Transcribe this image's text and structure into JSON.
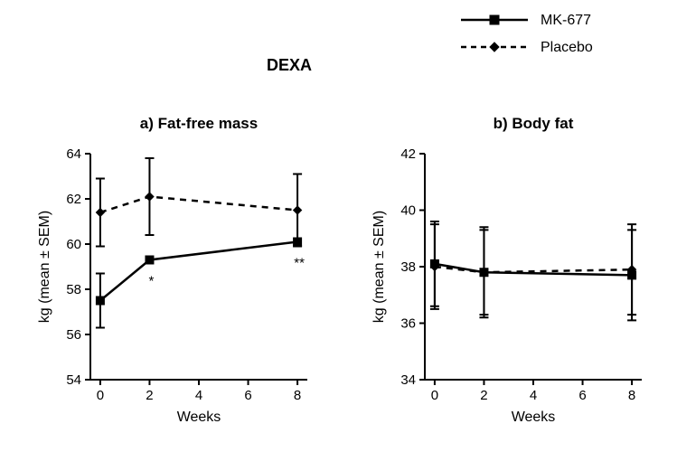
{
  "main_title": "DEXA",
  "main_title_fontsize": 18,
  "main_title_fontweight": "bold",
  "legend": {
    "items": [
      {
        "label": "MK-677",
        "marker": "square",
        "line_dash": "solid",
        "color": "#000000"
      },
      {
        "label": "Placebo",
        "marker": "diamond",
        "line_dash": "dashed",
        "color": "#000000"
      }
    ],
    "fontsize": 16
  },
  "panel_a": {
    "title": "a) Fat-free mass",
    "title_fontsize": 17,
    "title_fontweight": "bold",
    "type": "line_errorbar",
    "xlabel": "Weeks",
    "ylabel": "kg (mean ± SEM)",
    "label_fontsize": 16,
    "xlim": [
      -0.4,
      8.4
    ],
    "ylim": [
      54,
      64
    ],
    "xticks": [
      0,
      2,
      4,
      6,
      8
    ],
    "yticks": [
      54,
      56,
      58,
      60,
      62,
      64
    ],
    "tick_fontsize": 15,
    "background_color": "#ffffff",
    "grid": false,
    "line_width": 2.5,
    "marker_size": 9,
    "error_cap_width": 10,
    "series": [
      {
        "name": "mk677",
        "marker": "square",
        "line_dash": "solid",
        "color": "#000000",
        "points": [
          {
            "x": 0,
            "y": 57.5,
            "err": 1.2,
            "annot": ""
          },
          {
            "x": 2,
            "y": 59.3,
            "err": 0.0,
            "annot": "*"
          },
          {
            "x": 8,
            "y": 60.1,
            "err": 0.0,
            "annot": "**"
          }
        ]
      },
      {
        "name": "placebo",
        "marker": "diamond",
        "line_dash": "dashed",
        "color": "#000000",
        "points": [
          {
            "x": 0,
            "y": 61.4,
            "err": 1.5,
            "annot": ""
          },
          {
            "x": 2,
            "y": 62.1,
            "err": 1.7,
            "annot": ""
          },
          {
            "x": 8,
            "y": 61.5,
            "err": 1.6,
            "annot": ""
          }
        ]
      }
    ]
  },
  "panel_b": {
    "title": "b) Body fat",
    "title_fontsize": 17,
    "title_fontweight": "bold",
    "type": "line_errorbar",
    "xlabel": "Weeks",
    "ylabel": "kg (mean ± SEM)",
    "label_fontsize": 16,
    "xlim": [
      -0.4,
      8.4
    ],
    "ylim": [
      34,
      42
    ],
    "xticks": [
      0,
      2,
      4,
      6,
      8
    ],
    "yticks": [
      34,
      36,
      38,
      40,
      42
    ],
    "tick_fontsize": 15,
    "background_color": "#ffffff",
    "grid": false,
    "line_width": 2.5,
    "marker_size": 9,
    "error_cap_width": 10,
    "series": [
      {
        "name": "mk677",
        "marker": "square",
        "line_dash": "solid",
        "color": "#000000",
        "points": [
          {
            "x": 0,
            "y": 38.1,
            "err": 1.5,
            "annot": ""
          },
          {
            "x": 2,
            "y": 37.8,
            "err": 1.6,
            "annot": ""
          },
          {
            "x": 8,
            "y": 37.7,
            "err": 1.6,
            "annot": ""
          }
        ]
      },
      {
        "name": "placebo",
        "marker": "diamond",
        "line_dash": "dashed",
        "color": "#000000",
        "points": [
          {
            "x": 0,
            "y": 38.0,
            "err": 1.5,
            "annot": ""
          },
          {
            "x": 2,
            "y": 37.8,
            "err": 1.5,
            "annot": ""
          },
          {
            "x": 8,
            "y": 37.9,
            "err": 1.6,
            "annot": ""
          }
        ]
      }
    ]
  }
}
